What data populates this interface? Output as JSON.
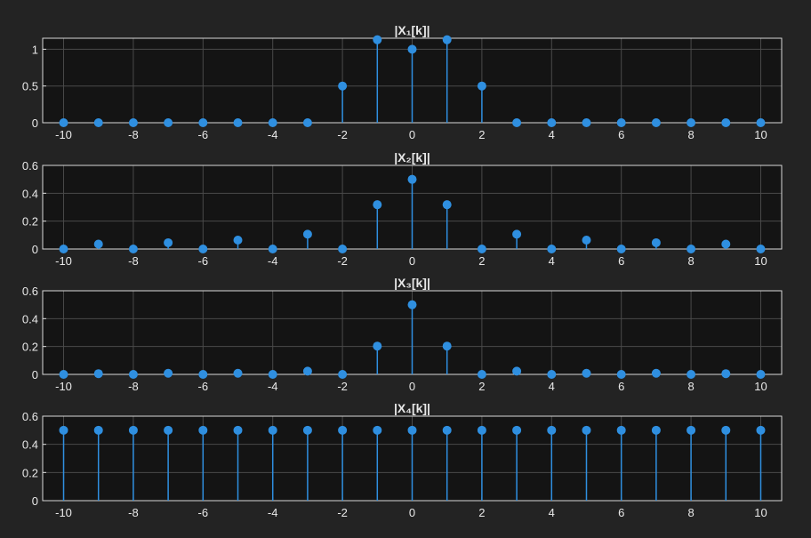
{
  "colors": {
    "background": "#232323",
    "axes_background": "#141414",
    "axis_line": "#d8d8d8",
    "grid": "#4a4a4a",
    "stem": "#2f8fe0",
    "text": "#e8e8e8"
  },
  "chart_data": [
    {
      "type": "stem",
      "title": "|X₁[k]|",
      "xlabel": "",
      "ylabel": "",
      "grid": true,
      "xlim": [
        -10.6,
        10.6
      ],
      "ylim": [
        0,
        1.15
      ],
      "xticks": [
        -10,
        -8,
        -6,
        -4,
        -2,
        0,
        2,
        4,
        6,
        8,
        10
      ],
      "xtick_labels": [
        "-10",
        "-8",
        "-6",
        "-4",
        "-2",
        "0",
        "2",
        "4",
        "6",
        "8",
        "10"
      ],
      "yticks": [
        0,
        0.5,
        1
      ],
      "ytick_labels": [
        "0",
        "0.5",
        "1"
      ],
      "x": [
        -10,
        -9,
        -8,
        -7,
        -6,
        -5,
        -4,
        -3,
        -2,
        -1,
        0,
        1,
        2,
        3,
        4,
        5,
        6,
        7,
        8,
        9,
        10
      ],
      "values": [
        0,
        0,
        0,
        0,
        0,
        0,
        0,
        0,
        0.5,
        1.13,
        1,
        1.13,
        0.5,
        0,
        0,
        0,
        0,
        0,
        0,
        0,
        0
      ]
    },
    {
      "type": "stem",
      "title": "|X₂[k]|",
      "xlabel": "",
      "ylabel": "",
      "grid": true,
      "xlim": [
        -10.6,
        10.6
      ],
      "ylim": [
        0,
        0.6
      ],
      "xticks": [
        -10,
        -8,
        -6,
        -4,
        -2,
        0,
        2,
        4,
        6,
        8,
        10
      ],
      "xtick_labels": [
        "-10",
        "-8",
        "-6",
        "-4",
        "-2",
        "0",
        "2",
        "4",
        "6",
        "8",
        "10"
      ],
      "yticks": [
        0,
        0.2,
        0.4,
        0.6
      ],
      "ytick_labels": [
        "0",
        "0.2",
        "0.4",
        "0.6"
      ],
      "x": [
        -10,
        -9,
        -8,
        -7,
        -6,
        -5,
        -4,
        -3,
        -2,
        -1,
        0,
        1,
        2,
        3,
        4,
        5,
        6,
        7,
        8,
        9,
        10
      ],
      "values": [
        0,
        0.035,
        0,
        0.045,
        0,
        0.064,
        0,
        0.106,
        0,
        0.318,
        0.5,
        0.318,
        0,
        0.106,
        0,
        0.064,
        0,
        0.045,
        0,
        0.035,
        0
      ]
    },
    {
      "type": "stem",
      "title": "|X₃[k]|",
      "xlabel": "",
      "ylabel": "",
      "grid": true,
      "xlim": [
        -10.6,
        10.6
      ],
      "ylim": [
        0,
        0.6
      ],
      "xticks": [
        -10,
        -8,
        -6,
        -4,
        -2,
        0,
        2,
        4,
        6,
        8,
        10
      ],
      "xtick_labels": [
        "-10",
        "-8",
        "-6",
        "-4",
        "-2",
        "0",
        "2",
        "4",
        "6",
        "8",
        "10"
      ],
      "yticks": [
        0,
        0.2,
        0.4,
        0.6
      ],
      "ytick_labels": [
        "0",
        "0.2",
        "0.4",
        "0.6"
      ],
      "x": [
        -10,
        -9,
        -8,
        -7,
        -6,
        -5,
        -4,
        -3,
        -2,
        -1,
        0,
        1,
        2,
        3,
        4,
        5,
        6,
        7,
        8,
        9,
        10
      ],
      "values": [
        0,
        0.005,
        0,
        0.008,
        0,
        0.008,
        0,
        0.023,
        0,
        0.203,
        0.5,
        0.203,
        0,
        0.023,
        0,
        0.008,
        0,
        0.008,
        0,
        0.005,
        0
      ]
    },
    {
      "type": "stem",
      "title": "|X₄[k]|",
      "xlabel": "",
      "ylabel": "",
      "grid": true,
      "xlim": [
        -10.6,
        10.6
      ],
      "ylim": [
        0,
        0.6
      ],
      "xticks": [
        -10,
        -8,
        -6,
        -4,
        -2,
        0,
        2,
        4,
        6,
        8,
        10
      ],
      "xtick_labels": [
        "-10",
        "-8",
        "-6",
        "-4",
        "-2",
        "0",
        "2",
        "4",
        "6",
        "8",
        "10"
      ],
      "yticks": [
        0,
        0.2,
        0.4,
        0.6
      ],
      "ytick_labels": [
        "0",
        "0.2",
        "0.4",
        "0.6"
      ],
      "x": [
        -10,
        -9,
        -8,
        -7,
        -6,
        -5,
        -4,
        -3,
        -2,
        -1,
        0,
        1,
        2,
        3,
        4,
        5,
        6,
        7,
        8,
        9,
        10
      ],
      "values": [
        0.5,
        0.5,
        0.5,
        0.5,
        0.5,
        0.5,
        0.5,
        0.5,
        0.5,
        0.5,
        0.5,
        0.5,
        0.5,
        0.5,
        0.5,
        0.5,
        0.5,
        0.5,
        0.5,
        0.5,
        0.5
      ]
    }
  ]
}
